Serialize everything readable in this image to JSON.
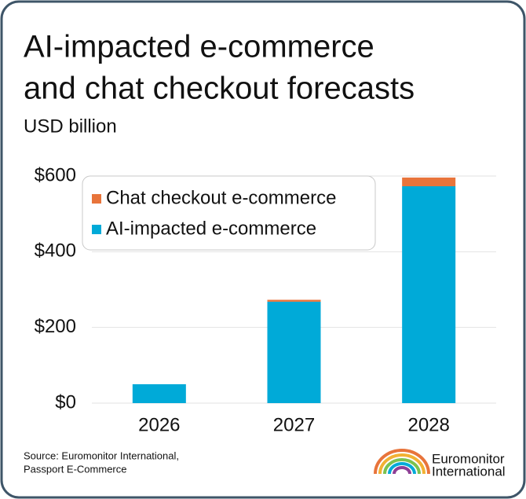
{
  "chart_data": {
    "type": "stacked_bar",
    "title": [
      "AI-impacted e-commerce",
      "and chat checkout forecasts"
    ],
    "subtitle": "USD billion",
    "categories": [
      "2026",
      "2027",
      "2028"
    ],
    "series": [
      {
        "name": "AI-impacted e-commerce",
        "color": "#00aad8",
        "values": [
          50,
          268,
          573
        ]
      },
      {
        "name": "Chat checkout e-commerce",
        "color": "#e8743b",
        "values": [
          0,
          5,
          23
        ]
      }
    ],
    "ylim": [
      0,
      600
    ],
    "yticks": [
      {
        "value": 0,
        "label": "$0"
      },
      {
        "value": 200,
        "label": "$200"
      },
      {
        "value": 400,
        "label": "$400"
      },
      {
        "value": 600,
        "label": "$600"
      }
    ],
    "grid": true,
    "legend": "top-left",
    "source": [
      "Source: Euromonitor International,",
      "Passport E-Commerce"
    ]
  },
  "logo": [
    "Euromonitor",
    "International"
  ]
}
